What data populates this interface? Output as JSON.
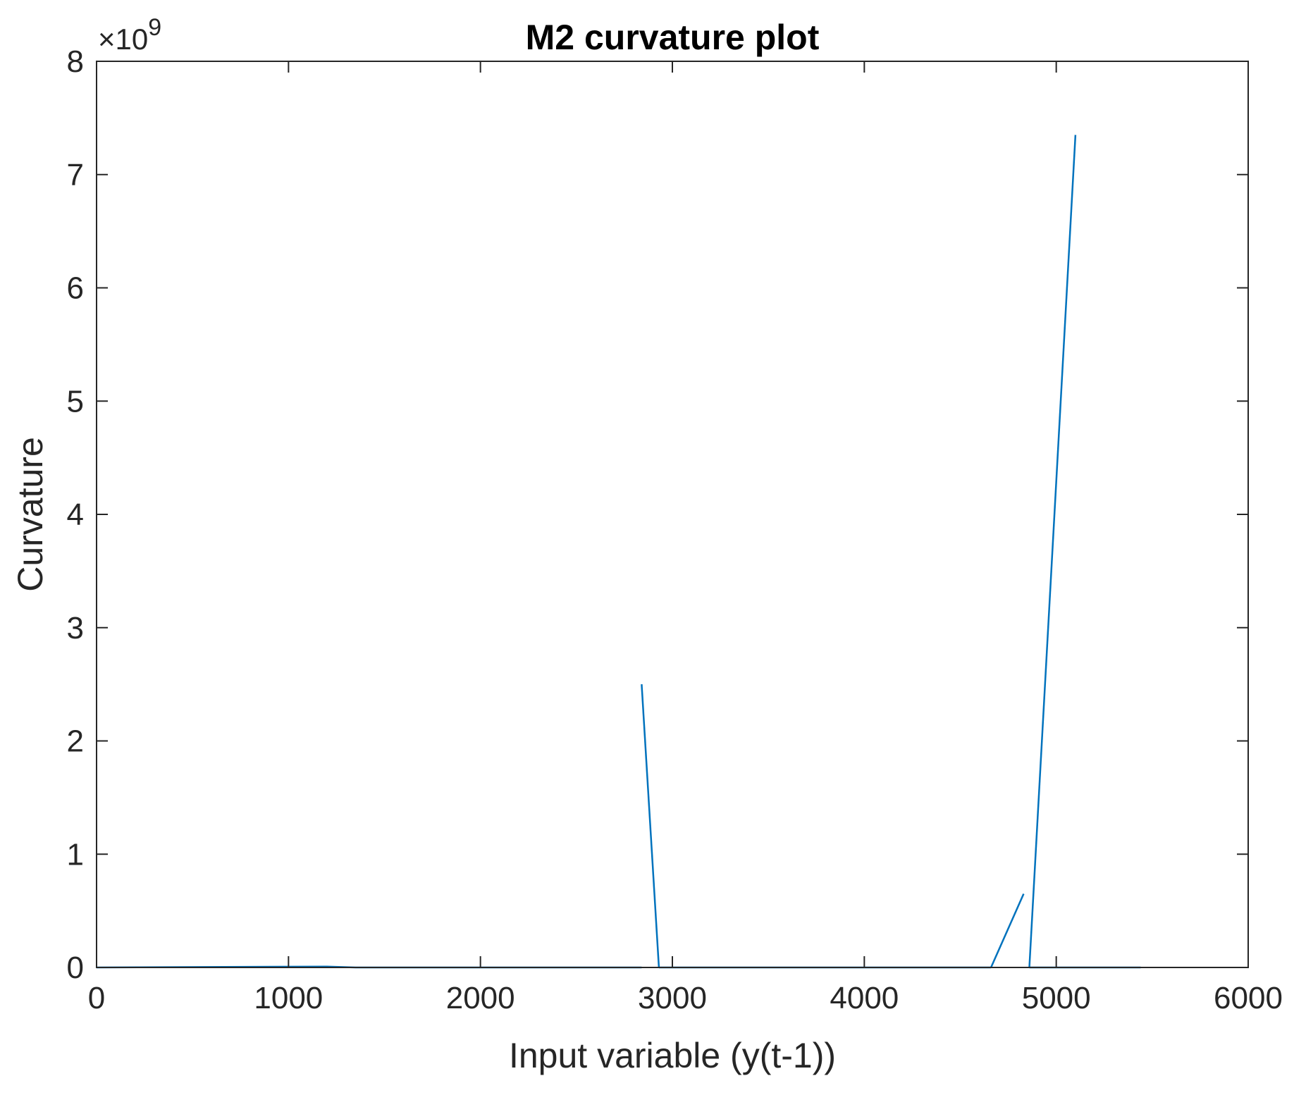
{
  "colors": {
    "series": "#0072bd",
    "axis": "#262626",
    "background": "#ffffff"
  },
  "chart_data": {
    "type": "line",
    "title": "M2 curvature plot",
    "xlabel": "Input variable (y(t-1))",
    "ylabel": "Curvature",
    "y_exponent_label": "×10",
    "y_exponent_power": "9",
    "xlim": [
      0,
      6000
    ],
    "ylim": [
      0,
      8
    ],
    "y_scale_factor": 1000000000,
    "xticks": [
      0,
      1000,
      2000,
      3000,
      4000,
      5000,
      6000
    ],
    "xtick_labels": [
      "0",
      "1000",
      "2000",
      "3000",
      "4000",
      "5000",
      "6000"
    ],
    "yticks": [
      0,
      1,
      2,
      3,
      4,
      5,
      6,
      7,
      8
    ],
    "ytick_labels": [
      "0",
      "1",
      "2",
      "3",
      "4",
      "5",
      "6",
      "7",
      "8"
    ],
    "grid": false,
    "legend": "none",
    "series": [
      {
        "segments": [
          {
            "x": [
              0,
              1200,
              1350,
              2840
            ],
            "y": [
              0,
              0.008,
              0,
              0
            ]
          },
          {
            "x": [
              2840,
              2930
            ],
            "y": [
              2.5,
              0
            ]
          },
          {
            "x": [
              2930,
              4660
            ],
            "y": [
              0,
              0
            ]
          },
          {
            "x": [
              4660,
              4830
            ],
            "y": [
              0,
              0.65
            ]
          },
          {
            "x": [
              4860,
              5100
            ],
            "y": [
              0,
              7.35
            ]
          },
          {
            "x": [
              4860,
              5440
            ],
            "y": [
              0,
              0
            ]
          }
        ]
      }
    ]
  }
}
